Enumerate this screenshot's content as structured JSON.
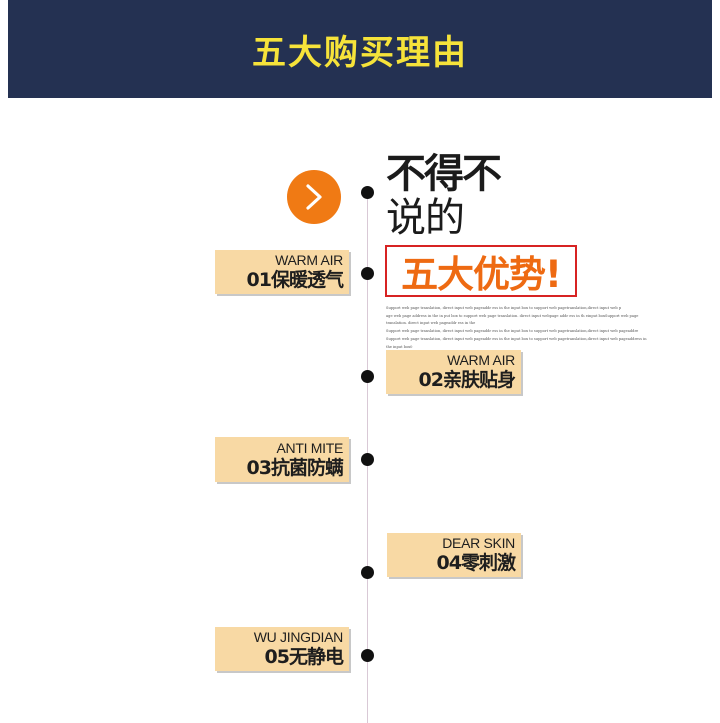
{
  "header": {
    "title": "五大购买理由"
  },
  "headline": {
    "line1": "不得不",
    "line2": "说的",
    "highlight": "五大优势!"
  },
  "arrow_icon": "chevron-right-icon",
  "fine_print": [
    "Support web page translation, direct input web pageaddr ess in the input box to support web pagetranslation,direct input web p",
    "age web page address in the in put box to support web page translation. direct input webpage addr ess in th einput boxSupport web page translation. direct input web pageaddr ess in the",
    "Support web page translation, direct input web pageaddr ess in the input box to support web pagetranslation,direct input web pageaddre",
    "Support web page translation, direct input web pageaddr ess in the input box to support web pagetranslation,direct input web pageaddress in the input box0",
    "support web pagetran slation,direct input web page addre"
  ],
  "reasons": [
    {
      "en": "WARM AIR",
      "cn": "01保暖透气"
    },
    {
      "en": "WARM AIR",
      "cn": "02亲肤贴身"
    },
    {
      "en": "ANTI MITE",
      "cn": "03抗菌防螨"
    },
    {
      "en": "DEAR SKIN",
      "cn": "04零刺激"
    },
    {
      "en": "WU JINGDIAN",
      "cn": "05无静电"
    }
  ],
  "colors": {
    "header_bg": "#243152",
    "header_text": "#f6e33a",
    "accent_orange": "#f07a14",
    "highlight_border": "#d72323",
    "tag_bg": "#f8d9a4"
  }
}
